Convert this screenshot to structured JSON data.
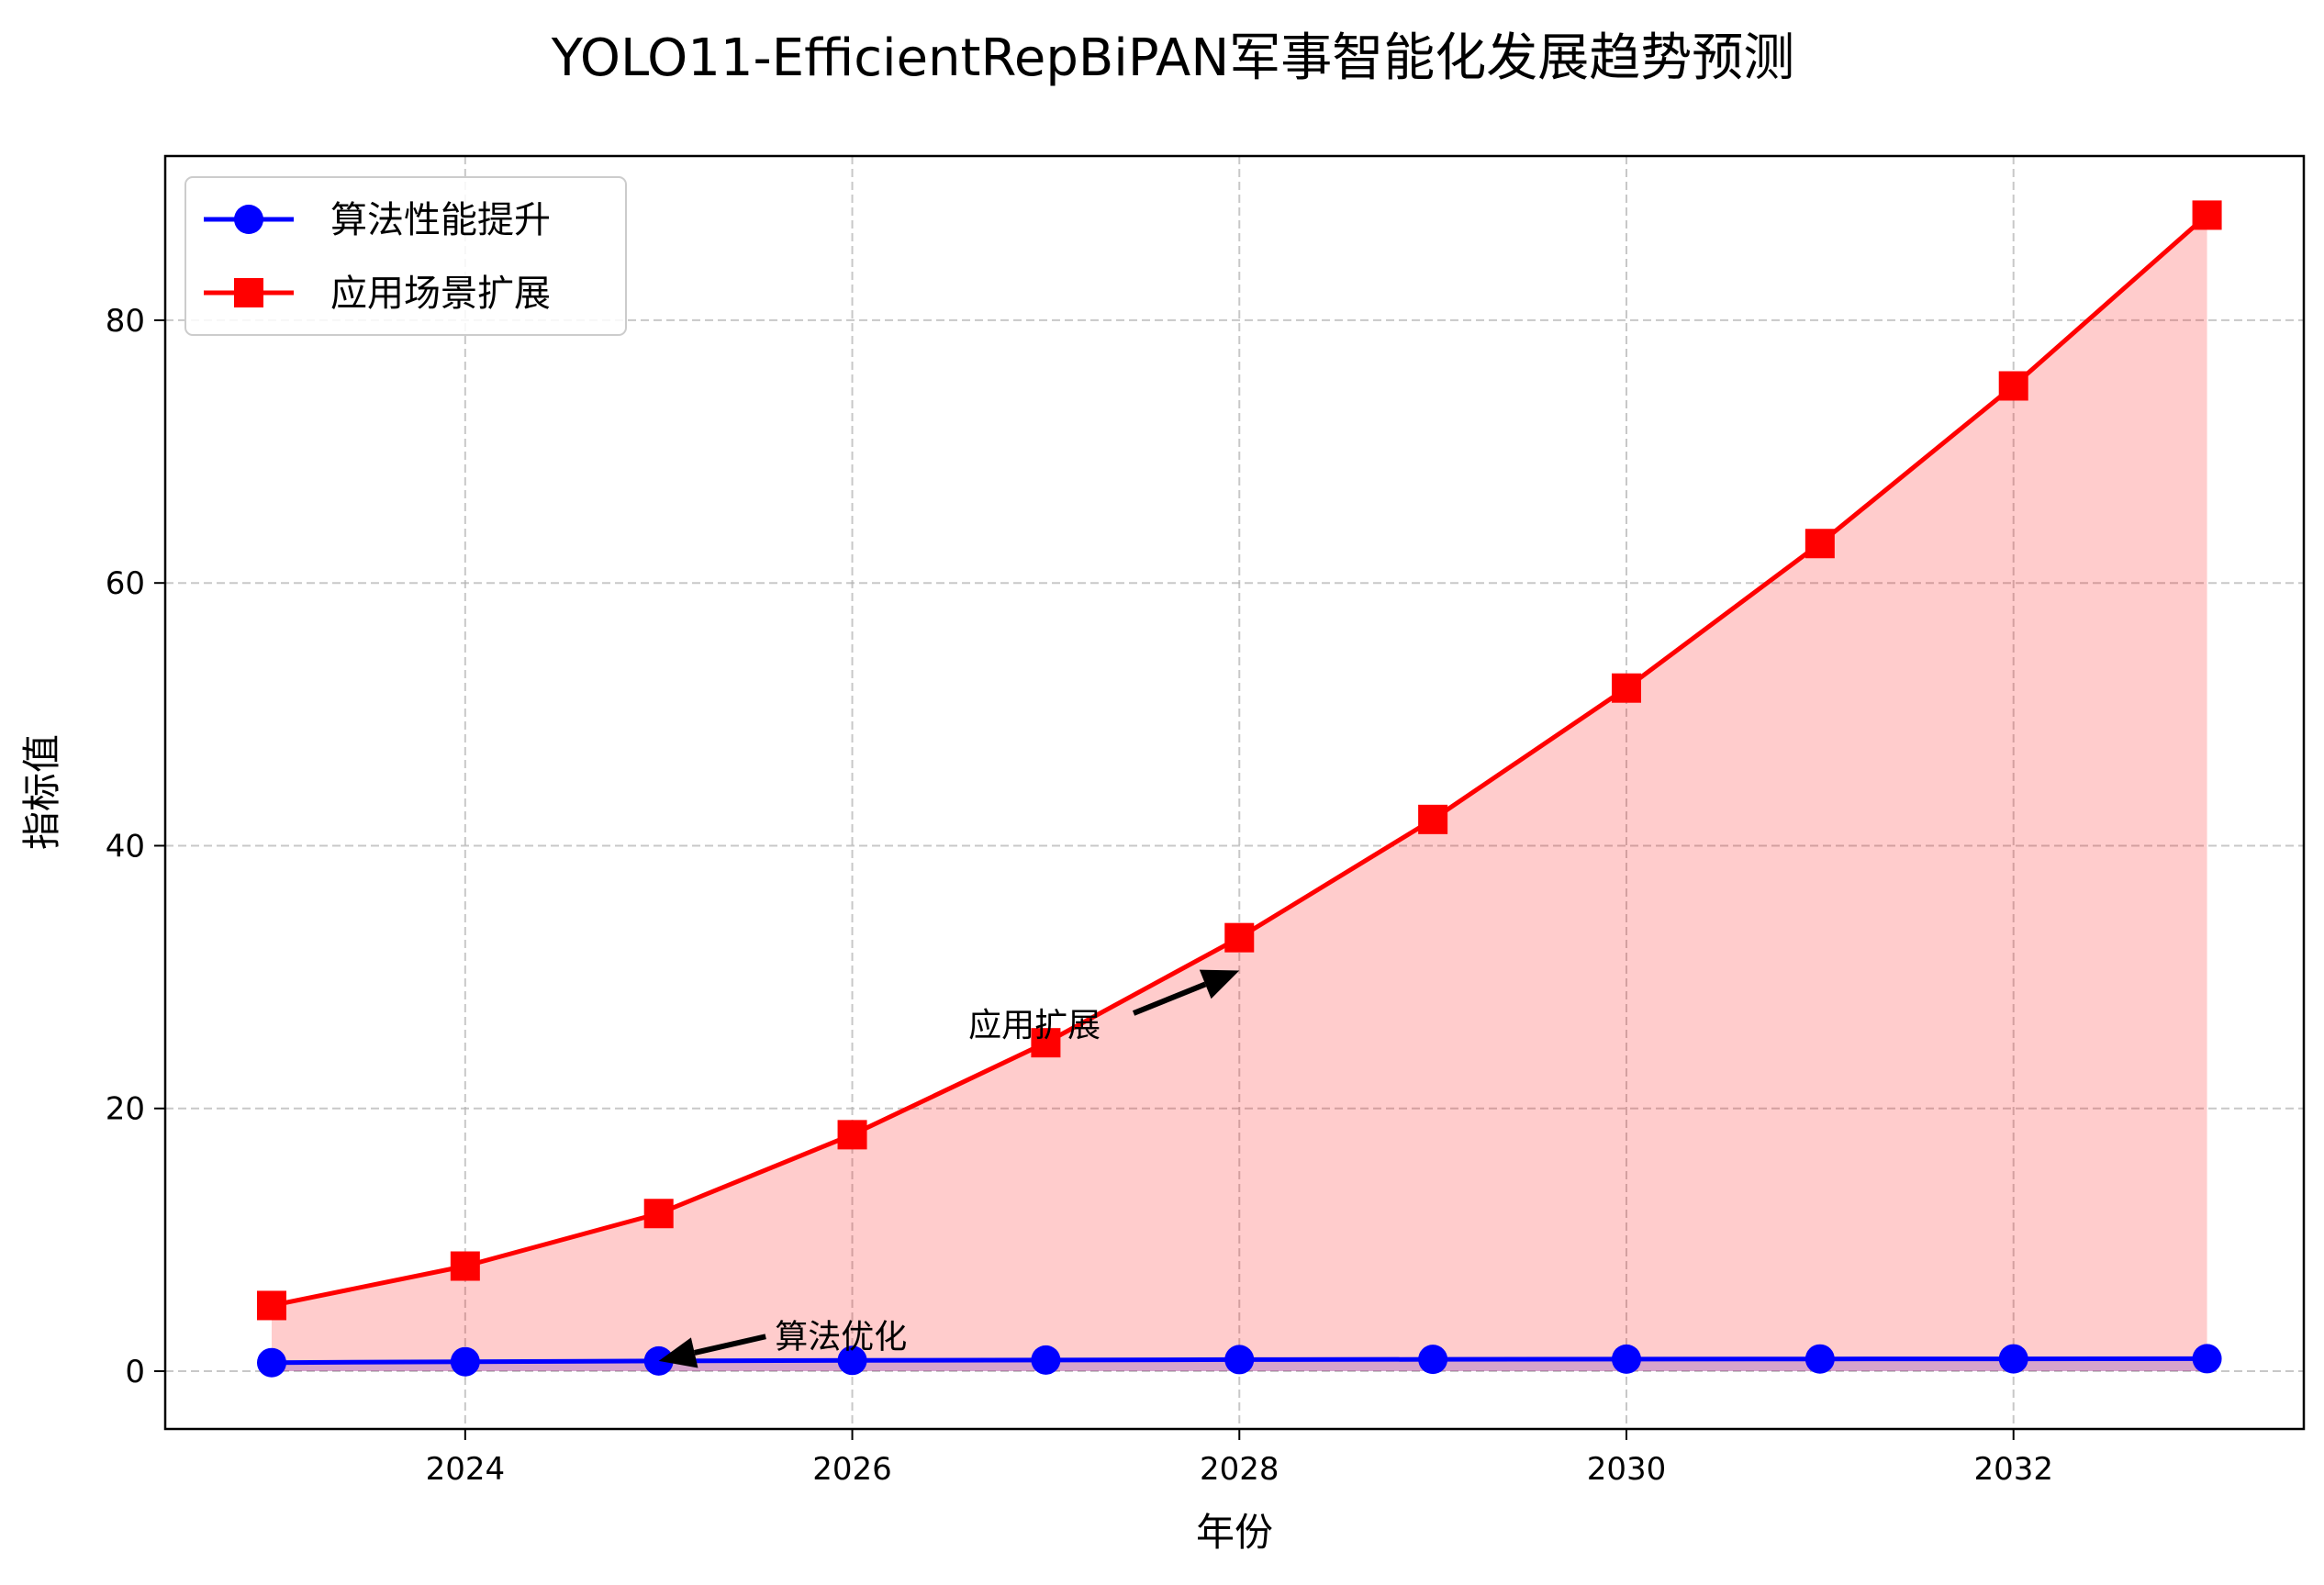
{
  "chart_data": {
    "type": "line",
    "title": "YOLO11-EfficientRepBiPAN军事智能化发展趋势预测",
    "xlabel": "年份",
    "ylabel": "指标值",
    "x": [
      2023,
      2024,
      2025,
      2026,
      2027,
      2028,
      2029,
      2030,
      2031,
      2032,
      2033
    ],
    "xlim": [
      2022.45,
      2033.5
    ],
    "ylim": [
      -4.4,
      92.5
    ],
    "xticks": [
      2024,
      2026,
      2028,
      2030,
      2032
    ],
    "yticks": [
      0,
      20,
      40,
      60,
      80
    ],
    "grid": true,
    "grid_style": "dashed",
    "legend_position": "upper left",
    "series": [
      {
        "name": "算法性能提升",
        "color": "#0000ff",
        "marker": "circle",
        "fill": true,
        "values": [
          0.65,
          0.72,
          0.78,
          0.82,
          0.85,
          0.88,
          0.9,
          0.92,
          0.93,
          0.94,
          0.95
        ]
      },
      {
        "name": "应用场景扩展",
        "color": "#ff0000",
        "marker": "square",
        "fill": true,
        "values": [
          5,
          8,
          12,
          18,
          25,
          33,
          42,
          52,
          63,
          75,
          88
        ]
      }
    ],
    "annotations": [
      {
        "text": "算法优化",
        "point": [
          2025,
          0.78
        ],
        "text_at": [
          2025.6,
          1.8
        ]
      },
      {
        "text": "应用扩展",
        "point": [
          2028,
          30.5
        ],
        "text_at": [
          2026.6,
          25.5
        ]
      }
    ]
  }
}
